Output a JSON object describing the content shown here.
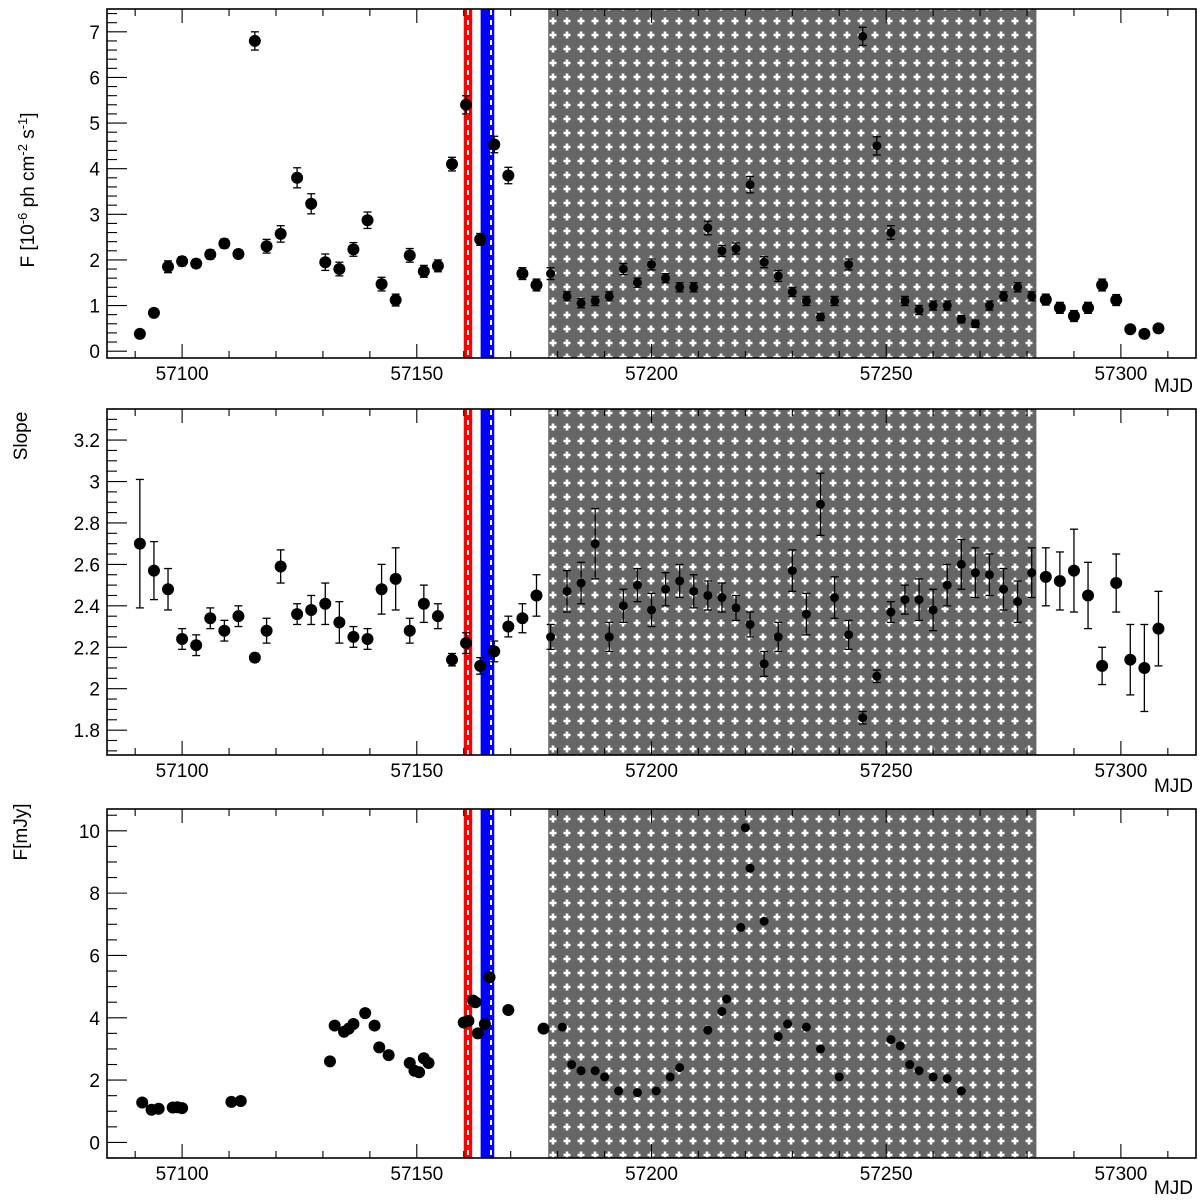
{
  "chart_data": [
    {
      "type": "scatter",
      "id": "flux",
      "ylabel": {
        "base": "F [10",
        "exp1": "-6",
        "mid": " ph cm",
        "exp2": "-2",
        "mid2": " s",
        "exp3": "-1",
        "end": "]"
      },
      "xlabel": "MJD",
      "xlim": [
        57084,
        57316
      ],
      "ylim": [
        -0.15,
        7.5
      ],
      "xticks": [
        57100,
        57150,
        57200,
        57250,
        57300
      ],
      "yticks": [
        0,
        1,
        2,
        3,
        4,
        5,
        6,
        7
      ],
      "y_minor_step": 0.2,
      "points": [
        [
          57091,
          0.38,
          0.05
        ],
        [
          57094,
          0.84,
          0.06
        ],
        [
          57097,
          1.85,
          0.13
        ],
        [
          57100,
          1.97,
          0.1
        ],
        [
          57103,
          1.92,
          0.09
        ],
        [
          57106,
          2.12,
          0.1
        ],
        [
          57109,
          2.36,
          0.1
        ],
        [
          57112,
          2.13,
          0.09
        ],
        [
          57115.5,
          6.8,
          0.2
        ],
        [
          57118,
          2.3,
          0.15
        ],
        [
          57121,
          2.57,
          0.18
        ],
        [
          57124.5,
          3.8,
          0.22
        ],
        [
          57127.5,
          3.23,
          0.22
        ],
        [
          57130.5,
          1.95,
          0.18
        ],
        [
          57133.5,
          1.8,
          0.15
        ],
        [
          57136.5,
          2.23,
          0.15
        ],
        [
          57139.5,
          2.87,
          0.18
        ],
        [
          57142.5,
          1.47,
          0.15
        ],
        [
          57145.5,
          1.12,
          0.13
        ],
        [
          57148.5,
          2.1,
          0.15
        ],
        [
          57151.5,
          1.75,
          0.13
        ],
        [
          57154.5,
          1.87,
          0.13
        ],
        [
          57157.5,
          4.1,
          0.15
        ],
        [
          57160.5,
          5.4,
          0.2
        ],
        [
          57163.5,
          2.45,
          0.13
        ],
        [
          57166.5,
          4.53,
          0.18
        ],
        [
          57169.5,
          3.85,
          0.18
        ],
        [
          57172.5,
          1.7,
          0.13
        ],
        [
          57175.5,
          1.45,
          0.13
        ],
        [
          57178.5,
          1.7,
          0.13
        ],
        [
          57182,
          1.2,
          0.1
        ],
        [
          57185,
          1.05,
          0.1
        ],
        [
          57188,
          1.1,
          0.1
        ],
        [
          57191,
          1.2,
          0.1
        ],
        [
          57194,
          1.8,
          0.12
        ],
        [
          57197,
          1.5,
          0.1
        ],
        [
          57200,
          1.9,
          0.12
        ],
        [
          57203,
          1.6,
          0.1
        ],
        [
          57206,
          1.4,
          0.1
        ],
        [
          57209,
          1.4,
          0.1
        ],
        [
          57212,
          2.7,
          0.15
        ],
        [
          57215,
          2.2,
          0.12
        ],
        [
          57218,
          2.25,
          0.12
        ],
        [
          57221,
          3.65,
          0.18
        ],
        [
          57224,
          1.95,
          0.12
        ],
        [
          57227,
          1.65,
          0.12
        ],
        [
          57230,
          1.3,
          0.1
        ],
        [
          57233,
          1.1,
          0.1
        ],
        [
          57236,
          0.75,
          0.08
        ],
        [
          57239,
          1.1,
          0.1
        ],
        [
          57242,
          1.9,
          0.12
        ],
        [
          57245,
          6.9,
          0.2
        ],
        [
          57248,
          4.5,
          0.2
        ],
        [
          57251,
          2.6,
          0.15
        ],
        [
          57254,
          1.1,
          0.1
        ],
        [
          57257,
          0.9,
          0.1
        ],
        [
          57260,
          1.0,
          0.1
        ],
        [
          57263,
          1.0,
          0.1
        ],
        [
          57266,
          0.7,
          0.08
        ],
        [
          57269,
          0.6,
          0.08
        ],
        [
          57272,
          1.0,
          0.1
        ],
        [
          57275,
          1.2,
          0.1
        ],
        [
          57278,
          1.4,
          0.1
        ],
        [
          57281,
          1.2,
          0.1
        ],
        [
          57284,
          1.13,
          0.12
        ],
        [
          57287,
          0.95,
          0.12
        ],
        [
          57290,
          0.77,
          0.12
        ],
        [
          57293,
          0.95,
          0.12
        ],
        [
          57296,
          1.45,
          0.13
        ],
        [
          57299,
          1.12,
          0.12
        ],
        [
          57302,
          0.48,
          0.06
        ],
        [
          57305,
          0.38,
          0.05
        ],
        [
          57308,
          0.5,
          0.06
        ]
      ]
    },
    {
      "type": "scatter",
      "id": "slope",
      "ylabel": "Slope",
      "xlabel": "MJD",
      "xlim": [
        57084,
        57316
      ],
      "ylim": [
        1.68,
        3.35
      ],
      "xticks": [
        57100,
        57150,
        57200,
        57250,
        57300
      ],
      "yticks": [
        1.8,
        2,
        2.2,
        2.4,
        2.6,
        2.8,
        3,
        3.2
      ],
      "y_minor_step": 0.05,
      "points": [
        [
          57091,
          2.7,
          0.31
        ],
        [
          57094,
          2.57,
          0.14
        ],
        [
          57097,
          2.48,
          0.1
        ],
        [
          57100,
          2.24,
          0.05
        ],
        [
          57103,
          2.21,
          0.05
        ],
        [
          57106,
          2.34,
          0.05
        ],
        [
          57109,
          2.28,
          0.05
        ],
        [
          57112,
          2.35,
          0.05
        ],
        [
          57115.5,
          2.15,
          0.02
        ],
        [
          57118,
          2.28,
          0.06
        ],
        [
          57121,
          2.59,
          0.08
        ],
        [
          57124.5,
          2.36,
          0.05
        ],
        [
          57127.5,
          2.38,
          0.07
        ],
        [
          57130.5,
          2.41,
          0.1
        ],
        [
          57133.5,
          2.32,
          0.1
        ],
        [
          57136.5,
          2.25,
          0.05
        ],
        [
          57139.5,
          2.24,
          0.05
        ],
        [
          57142.5,
          2.48,
          0.12
        ],
        [
          57145.5,
          2.53,
          0.15
        ],
        [
          57148.5,
          2.28,
          0.06
        ],
        [
          57151.5,
          2.41,
          0.09
        ],
        [
          57154.5,
          2.35,
          0.06
        ],
        [
          57157.5,
          2.14,
          0.03
        ],
        [
          57160.5,
          2.22,
          0.05
        ],
        [
          57163.5,
          2.11,
          0.04
        ],
        [
          57166.5,
          2.18,
          0.05
        ],
        [
          57169.5,
          2.3,
          0.05
        ],
        [
          57172.5,
          2.34,
          0.07
        ],
        [
          57175.5,
          2.45,
          0.1
        ],
        [
          57178.5,
          2.25,
          0.06
        ],
        [
          57182,
          2.47,
          0.1
        ],
        [
          57185,
          2.51,
          0.1
        ],
        [
          57188,
          2.7,
          0.17
        ],
        [
          57191,
          2.25,
          0.07
        ],
        [
          57194,
          2.4,
          0.08
        ],
        [
          57197,
          2.5,
          0.08
        ],
        [
          57200,
          2.38,
          0.08
        ],
        [
          57203,
          2.48,
          0.08
        ],
        [
          57206,
          2.52,
          0.08
        ],
        [
          57209,
          2.47,
          0.08
        ],
        [
          57212,
          2.45,
          0.07
        ],
        [
          57215,
          2.44,
          0.07
        ],
        [
          57218,
          2.39,
          0.06
        ],
        [
          57221,
          2.31,
          0.06
        ],
        [
          57224,
          2.12,
          0.06
        ],
        [
          57227,
          2.25,
          0.07
        ],
        [
          57230,
          2.57,
          0.1
        ],
        [
          57233,
          2.36,
          0.1
        ],
        [
          57236,
          2.89,
          0.15
        ],
        [
          57239,
          2.44,
          0.1
        ],
        [
          57242,
          2.26,
          0.07
        ],
        [
          57245,
          1.86,
          0.03
        ],
        [
          57248,
          2.06,
          0.03
        ],
        [
          57251,
          2.37,
          0.05
        ],
        [
          57254,
          2.43,
          0.07
        ],
        [
          57257,
          2.43,
          0.1
        ],
        [
          57260,
          2.38,
          0.1
        ],
        [
          57263,
          2.5,
          0.1
        ],
        [
          57266,
          2.6,
          0.12
        ],
        [
          57269,
          2.56,
          0.12
        ],
        [
          57272,
          2.55,
          0.1
        ],
        [
          57275,
          2.48,
          0.1
        ],
        [
          57278,
          2.42,
          0.1
        ],
        [
          57281,
          2.56,
          0.12
        ],
        [
          57284,
          2.54,
          0.14
        ],
        [
          57287,
          2.52,
          0.14
        ],
        [
          57290,
          2.57,
          0.2
        ],
        [
          57293,
          2.45,
          0.16
        ],
        [
          57296,
          2.11,
          0.09
        ],
        [
          57299,
          2.51,
          0.14
        ],
        [
          57302,
          2.14,
          0.17
        ],
        [
          57305,
          2.1,
          0.21
        ],
        [
          57308,
          2.29,
          0.18
        ]
      ]
    },
    {
      "type": "scatter",
      "id": "optical",
      "ylabel": "F[mJy]",
      "xlabel": "MJD",
      "xlim": [
        57084,
        57316
      ],
      "ylim": [
        -0.5,
        10.7
      ],
      "xticks": [
        57100,
        57150,
        57200,
        57250,
        57300
      ],
      "yticks": [
        0,
        2,
        4,
        6,
        8,
        10
      ],
      "y_minor_step": 0.5,
      "points": [
        [
          57091.5,
          1.28
        ],
        [
          57093.5,
          1.05
        ],
        [
          57095,
          1.08
        ],
        [
          57098,
          1.12
        ],
        [
          57099,
          1.13
        ],
        [
          57100,
          1.1
        ],
        [
          57110.5,
          1.3
        ],
        [
          57112.5,
          1.33
        ],
        [
          57131.5,
          2.6
        ],
        [
          57132.5,
          3.75
        ],
        [
          57134.5,
          3.55
        ],
        [
          57135.5,
          3.65
        ],
        [
          57136.5,
          3.8
        ],
        [
          57139,
          4.15
        ],
        [
          57141,
          3.75
        ],
        [
          57142,
          3.05
        ],
        [
          57144,
          2.8
        ],
        [
          57148.5,
          2.55
        ],
        [
          57149.5,
          2.3
        ],
        [
          57150.5,
          2.25
        ],
        [
          57151.5,
          2.7
        ],
        [
          57152.5,
          2.55
        ],
        [
          57160,
          3.85
        ],
        [
          57161,
          3.9
        ],
        [
          57162,
          4.55
        ],
        [
          57162.5,
          4.5
        ],
        [
          57163,
          3.5
        ],
        [
          57164.5,
          3.8
        ],
        [
          57165.5,
          5.3
        ],
        [
          57169.5,
          4.25
        ],
        [
          57177,
          3.65
        ],
        [
          57181,
          3.7
        ],
        [
          57183,
          2.5
        ],
        [
          57185,
          2.3
        ],
        [
          57188,
          2.3
        ],
        [
          57190,
          2.1
        ],
        [
          57193,
          1.65
        ],
        [
          57197,
          1.6
        ],
        [
          57201,
          1.65
        ],
        [
          57204,
          2.1
        ],
        [
          57206,
          2.4
        ],
        [
          57212,
          3.6
        ],
        [
          57215,
          4.2
        ],
        [
          57216,
          4.6
        ],
        [
          57219,
          6.9
        ],
        [
          57220,
          10.1
        ],
        [
          57221,
          8.8
        ],
        [
          57224,
          7.1
        ],
        [
          57227,
          3.4
        ],
        [
          57229,
          3.8
        ],
        [
          57233,
          3.7
        ],
        [
          57236,
          3.0
        ],
        [
          57240,
          2.1
        ],
        [
          57251,
          3.3
        ],
        [
          57253,
          3.1
        ],
        [
          57255,
          2.5
        ],
        [
          57257,
          2.3
        ],
        [
          57260,
          2.1
        ],
        [
          57263,
          2.05
        ],
        [
          57266,
          1.65
        ]
      ]
    }
  ],
  "shared": {
    "red_band": [
      57160,
      57161.8
    ],
    "blue_band": [
      57163.6,
      57166.5
    ],
    "gray_band": [
      57178,
      57282
    ],
    "colors": {
      "red": "#ff0000",
      "blue": "#0000ff",
      "gray": "#666666",
      "marker": "#000000"
    }
  }
}
